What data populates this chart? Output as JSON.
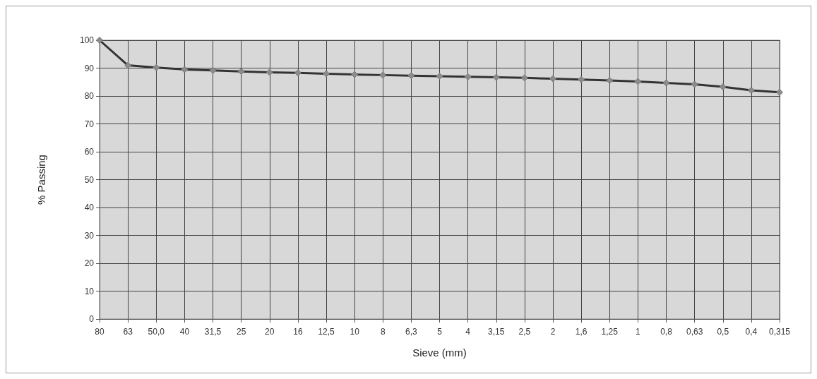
{
  "chart_data": {
    "type": "line",
    "xlabel": "Sieve (mm)",
    "ylabel": "% Passing",
    "categories": [
      "80",
      "63",
      "50,0",
      "40",
      "31,5",
      "25",
      "20",
      "16",
      "12,5",
      "10",
      "8",
      "6,3",
      "5",
      "4",
      "3,15",
      "2,5",
      "2",
      "1,6",
      "1,25",
      "1",
      "0,8",
      "0,63",
      "0,5",
      "0,4",
      "0,315"
    ],
    "series": [
      {
        "color": "#333333",
        "values": [
          100,
          91,
          90.2,
          89.5,
          89.2,
          88.8,
          88.5,
          88.3,
          88,
          87.7,
          87.5,
          87.3,
          87.1,
          86.9,
          86.7,
          86.5,
          86.2,
          85.9,
          85.6,
          85.2,
          84.7,
          84.2,
          83.3,
          82,
          81.3
        ]
      }
    ],
    "ylim": [
      0,
      100
    ],
    "yticks": [
      0,
      10,
      20,
      30,
      40,
      50,
      60,
      70,
      80,
      90,
      100
    ],
    "grid": true,
    "marker": "diamond",
    "line_style": "solid"
  }
}
